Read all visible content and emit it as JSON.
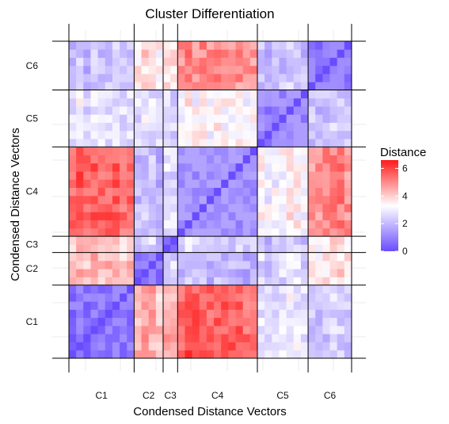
{
  "chart_data": {
    "type": "heatmap",
    "title": "Cluster Differentiation",
    "xlabel": "Condensed Distance Vectors",
    "ylabel": "Condensed Distance Vectors",
    "clusters": [
      "C1",
      "C2",
      "C3",
      "C4",
      "C5",
      "C6"
    ],
    "cluster_sizes": [
      9,
      4,
      2,
      11,
      7,
      6
    ],
    "legend": {
      "title": "Distance",
      "ticks": [
        0,
        2,
        4,
        6
      ],
      "range": [
        0,
        6.6
      ],
      "colors": {
        "low": "#6a4cff",
        "mid": "#ffffff",
        "high": "#ff1a1a"
      },
      "midpoint": 3.3
    },
    "grid": true,
    "block_distance": [
      [
        1.0,
        4.3,
        4.2,
        5.6,
        2.8,
        2.2
      ],
      [
        4.3,
        0.9,
        2.4,
        2.0,
        2.6,
        3.6
      ],
      [
        4.2,
        2.4,
        0.8,
        2.4,
        2.3,
        3.6
      ],
      [
        5.6,
        2.0,
        2.4,
        1.4,
        3.3,
        4.9
      ],
      [
        2.8,
        2.6,
        2.3,
        3.3,
        1.3,
        2.2
      ],
      [
        2.2,
        3.6,
        3.6,
        4.9,
        2.2,
        1.0
      ]
    ]
  }
}
